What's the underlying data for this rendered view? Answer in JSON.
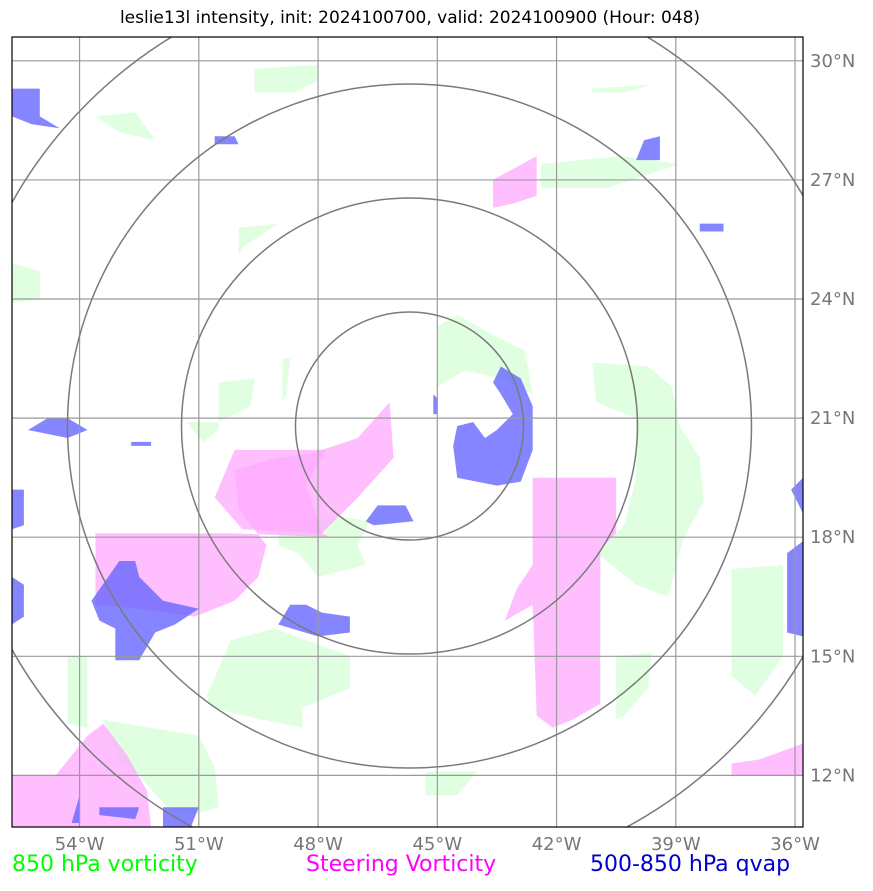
{
  "title": "leslie13l intensity, init: 2024100700, valid: 2024100900 (Hour: 048)",
  "map": {
    "extent": {
      "lon_min": -55.7,
      "lon_max": -35.8,
      "lat_min": 10.7,
      "lat_max": 30.6
    },
    "lon_ticks": [
      -54,
      -51,
      -48,
      -45,
      -42,
      -39,
      -36
    ],
    "lat_ticks": [
      12,
      15,
      18,
      21,
      24,
      27,
      30
    ],
    "lon_tick_labels": [
      "54°W",
      "51°W",
      "48°W",
      "45°W",
      "42°W",
      "39°W",
      "36°W"
    ],
    "lat_tick_labels": [
      "12°N",
      "15°N",
      "18°N",
      "21°N",
      "24°N",
      "27°N",
      "30°N"
    ],
    "gridlines": true,
    "range_rings": {
      "center": {
        "lon": -45.7,
        "lat": 20.8
      },
      "count": 4
    }
  },
  "legend": [
    {
      "label": "850 hPa vorticity",
      "color": "#00ff00"
    },
    {
      "label": "Steering Vorticity",
      "color": "#ff00ff"
    },
    {
      "label": "500-850 hPa qvap",
      "color": "#0000cc"
    }
  ],
  "fields": [
    {
      "name": "850 hPa vorticity",
      "fill": "#ccffcc",
      "opacity": 0.6,
      "polygons": [
        [
          [
            -49.6,
            29.8
          ],
          [
            -48.0,
            29.9
          ],
          [
            -48.0,
            29.5
          ],
          [
            -48.6,
            29.2
          ],
          [
            -49.6,
            29.2
          ]
        ],
        [
          [
            -41.1,
            29.3
          ],
          [
            -39.6,
            29.4
          ],
          [
            -40.3,
            29.2
          ],
          [
            -41.1,
            29.2
          ]
        ],
        [
          [
            -53.6,
            28.6
          ],
          [
            -52.6,
            28.7
          ],
          [
            -52.1,
            28.0
          ],
          [
            -53.0,
            28.2
          ]
        ],
        [
          [
            -42.4,
            27.4
          ],
          [
            -40.4,
            27.6
          ],
          [
            -38.9,
            27.4
          ],
          [
            -39.8,
            27.1
          ],
          [
            -40.7,
            26.8
          ],
          [
            -42.4,
            26.8
          ]
        ],
        [
          [
            -50.0,
            25.8
          ],
          [
            -49.0,
            25.9
          ],
          [
            -49.9,
            25.3
          ],
          [
            -50.0,
            25.1
          ]
        ],
        [
          [
            -55.7,
            24.9
          ],
          [
            -55.0,
            24.7
          ],
          [
            -55.0,
            24.0
          ],
          [
            -55.7,
            23.9
          ]
        ],
        [
          [
            -45.0,
            23.3
          ],
          [
            -44.5,
            23.6
          ],
          [
            -43.6,
            23.1
          ],
          [
            -42.8,
            22.7
          ],
          [
            -42.6,
            21.6
          ],
          [
            -43.4,
            22.0
          ],
          [
            -44.3,
            22.2
          ],
          [
            -45.0,
            21.8
          ]
        ],
        [
          [
            -41.1,
            22.4
          ],
          [
            -39.7,
            22.3
          ],
          [
            -39.1,
            21.8
          ],
          [
            -38.9,
            20.8
          ],
          [
            -38.4,
            20.0
          ],
          [
            -38.3,
            18.9
          ],
          [
            -38.8,
            18.0
          ],
          [
            -39.2,
            16.5
          ],
          [
            -40.0,
            16.8
          ],
          [
            -41.0,
            17.6
          ],
          [
            -40.3,
            18.3
          ],
          [
            -40.0,
            19.5
          ],
          [
            -40.0,
            21.0
          ],
          [
            -41.0,
            21.4
          ]
        ],
        [
          [
            -50.5,
            21.9
          ],
          [
            -49.6,
            22.0
          ],
          [
            -49.7,
            21.3
          ],
          [
            -50.5,
            20.9
          ],
          [
            -51.3,
            20.9
          ],
          [
            -50.9,
            20.4
          ],
          [
            -50.5,
            20.7
          ],
          [
            -50.5,
            21.2
          ]
        ],
        [
          [
            -48.9,
            22.5
          ],
          [
            -48.7,
            22.5
          ],
          [
            -48.8,
            21.6
          ],
          [
            -48.9,
            21.4
          ]
        ],
        [
          [
            -49.0,
            18.4
          ],
          [
            -47.3,
            18.5
          ],
          [
            -46.7,
            18.4
          ],
          [
            -47.0,
            17.8
          ],
          [
            -46.8,
            17.3
          ],
          [
            -48.0,
            17.0
          ],
          [
            -48.5,
            17.6
          ],
          [
            -49.0,
            17.8
          ]
        ],
        [
          [
            -50.2,
            15.4
          ],
          [
            -49.1,
            15.7
          ],
          [
            -48.0,
            15.3
          ],
          [
            -47.2,
            15.0
          ],
          [
            -47.2,
            14.2
          ],
          [
            -48.4,
            13.7
          ],
          [
            -48.4,
            13.2
          ],
          [
            -49.4,
            13.4
          ],
          [
            -50.7,
            13.7
          ],
          [
            -50.8,
            14.0
          ]
        ],
        [
          [
            -37.6,
            17.2
          ],
          [
            -36.3,
            17.3
          ],
          [
            -36.3,
            15.0
          ],
          [
            -37.0,
            14.0
          ],
          [
            -37.6,
            14.5
          ]
        ],
        [
          [
            -40.5,
            15.0
          ],
          [
            -39.6,
            15.1
          ],
          [
            -39.7,
            14.2
          ],
          [
            -40.3,
            13.5
          ],
          [
            -40.5,
            13.4
          ]
        ],
        [
          [
            -54.3,
            15.0
          ],
          [
            -53.8,
            15.0
          ],
          [
            -53.8,
            13.2
          ],
          [
            -54.3,
            13.3
          ]
        ],
        [
          [
            -53.4,
            13.4
          ],
          [
            -51.0,
            13.0
          ],
          [
            -50.6,
            12.2
          ],
          [
            -50.5,
            11.2
          ],
          [
            -51.2,
            11.0
          ],
          [
            -51.8,
            11.2
          ],
          [
            -52.5,
            12.0
          ],
          [
            -53.0,
            12.3
          ]
        ],
        [
          [
            -45.3,
            12.1
          ],
          [
            -44.0,
            12.1
          ],
          [
            -44.5,
            11.5
          ],
          [
            -45.3,
            11.5
          ]
        ],
        [
          [
            -45.5,
            18.0
          ],
          [
            -45.0,
            18.0
          ],
          [
            -45.5,
            17.9
          ]
        ]
      ]
    },
    {
      "name": "Steering Vorticity",
      "fill": "#ffaaff",
      "opacity": 0.75,
      "polygons": [
        [
          [
            -47.0,
            20.5
          ],
          [
            -46.2,
            21.4
          ],
          [
            -46.1,
            20.0
          ],
          [
            -47.0,
            19.0
          ],
          [
            -47.9,
            18.1
          ],
          [
            -47.7,
            18.0
          ],
          [
            -50.2,
            18.1
          ],
          [
            -52.3,
            18.1
          ],
          [
            -53.6,
            18.1
          ],
          [
            -53.6,
            16.3
          ],
          [
            -52.5,
            16.2
          ],
          [
            -51.1,
            16.0
          ],
          [
            -50.1,
            16.4
          ],
          [
            -49.5,
            17.0
          ],
          [
            -49.3,
            17.8
          ],
          [
            -50.0,
            18.7
          ],
          [
            -50.1,
            19.7
          ],
          [
            -49.0,
            20.0
          ],
          [
            -48.2,
            20.1
          ]
        ],
        [
          [
            -50.1,
            20.2
          ],
          [
            -47.8,
            20.2
          ],
          [
            -48.3,
            19.3
          ],
          [
            -47.9,
            18.1
          ],
          [
            -49.9,
            18.2
          ],
          [
            -50.6,
            19.0
          ]
        ],
        [
          [
            -42.6,
            19.5
          ],
          [
            -40.5,
            19.5
          ],
          [
            -40.5,
            18.1
          ],
          [
            -40.9,
            17.7
          ],
          [
            -40.9,
            15.7
          ],
          [
            -40.9,
            13.8
          ],
          [
            -41.6,
            13.4
          ],
          [
            -42.1,
            13.2
          ],
          [
            -42.5,
            13.5
          ],
          [
            -42.6,
            16.3
          ],
          [
            -43.3,
            15.9
          ],
          [
            -43.0,
            16.7
          ],
          [
            -42.6,
            17.3
          ]
        ],
        [
          [
            -43.6,
            27.0
          ],
          [
            -42.5,
            27.6
          ],
          [
            -42.5,
            26.6
          ],
          [
            -43.1,
            26.4
          ],
          [
            -43.6,
            26.3
          ]
        ],
        [
          [
            -37.6,
            12.3
          ],
          [
            -36.9,
            12.4
          ],
          [
            -35.8,
            12.8
          ],
          [
            -35.8,
            12.0
          ],
          [
            -37.6,
            12.0
          ]
        ],
        [
          [
            -55.7,
            12.0
          ],
          [
            -54.6,
            12.0
          ],
          [
            -53.8,
            13.0
          ],
          [
            -53.4,
            13.3
          ],
          [
            -52.8,
            12.5
          ],
          [
            -52.3,
            11.6
          ],
          [
            -52.2,
            10.7
          ],
          [
            -55.7,
            10.7
          ]
        ]
      ]
    },
    {
      "name": "500-850 hPa qvap",
      "fill": "#6666ff",
      "opacity": 0.8,
      "polygons": [
        [
          [
            -43.4,
            22.3
          ],
          [
            -42.9,
            22.0
          ],
          [
            -42.6,
            21.3
          ],
          [
            -42.6,
            20.2
          ],
          [
            -42.9,
            19.4
          ],
          [
            -43.5,
            19.3
          ],
          [
            -44.5,
            19.5
          ],
          [
            -44.6,
            20.3
          ],
          [
            -44.5,
            20.8
          ],
          [
            -44.1,
            20.9
          ],
          [
            -43.8,
            20.5
          ],
          [
            -43.5,
            20.7
          ],
          [
            -43.1,
            21.1
          ],
          [
            -43.4,
            21.6
          ],
          [
            -43.6,
            21.9
          ]
        ],
        [
          [
            -45.1,
            21.6
          ],
          [
            -45.0,
            21.5
          ],
          [
            -45.0,
            21.1
          ],
          [
            -45.1,
            21.1
          ]
        ],
        [
          [
            -46.5,
            18.8
          ],
          [
            -45.8,
            18.8
          ],
          [
            -45.6,
            18.4
          ],
          [
            -46.6,
            18.3
          ],
          [
            -46.8,
            18.4
          ]
        ],
        [
          [
            -53.0,
            17.4
          ],
          [
            -52.6,
            17.4
          ],
          [
            -52.5,
            17.0
          ],
          [
            -51.9,
            16.4
          ],
          [
            -51.0,
            16.2
          ],
          [
            -51.6,
            15.8
          ],
          [
            -52.1,
            15.6
          ],
          [
            -52.5,
            14.9
          ],
          [
            -53.1,
            14.9
          ],
          [
            -53.1,
            15.7
          ],
          [
            -53.5,
            15.9
          ],
          [
            -53.7,
            16.4
          ]
        ],
        [
          [
            -48.7,
            16.3
          ],
          [
            -48.3,
            16.3
          ],
          [
            -47.9,
            16.1
          ],
          [
            -47.2,
            16.0
          ],
          [
            -47.2,
            15.6
          ],
          [
            -48.0,
            15.5
          ],
          [
            -49.0,
            15.8
          ]
        ],
        [
          [
            -54.8,
            21.0
          ],
          [
            -54.3,
            21.0
          ],
          [
            -53.8,
            20.7
          ],
          [
            -54.3,
            20.5
          ],
          [
            -55.3,
            20.7
          ]
        ],
        [
          [
            -55.5,
            29.3
          ],
          [
            -55.0,
            29.3
          ],
          [
            -55.0,
            28.6
          ],
          [
            -54.5,
            28.3
          ],
          [
            -55.2,
            28.4
          ],
          [
            -55.7,
            28.6
          ],
          [
            -55.7,
            29.3
          ]
        ],
        [
          [
            -50.6,
            28.1
          ],
          [
            -50.1,
            28.1
          ],
          [
            -50.0,
            27.9
          ],
          [
            -50.6,
            27.9
          ]
        ],
        [
          [
            -39.8,
            28.0
          ],
          [
            -39.4,
            28.1
          ],
          [
            -39.4,
            27.5
          ],
          [
            -40.0,
            27.5
          ]
        ],
        [
          [
            -38.4,
            25.9
          ],
          [
            -37.8,
            25.9
          ],
          [
            -37.8,
            25.7
          ],
          [
            -38.4,
            25.7
          ]
        ],
        [
          [
            -52.7,
            20.4
          ],
          [
            -52.2,
            20.4
          ],
          [
            -52.2,
            20.3
          ],
          [
            -52.7,
            20.3
          ]
        ],
        [
          [
            -55.7,
            19.2
          ],
          [
            -55.4,
            19.2
          ],
          [
            -55.4,
            18.3
          ],
          [
            -55.7,
            18.2
          ]
        ],
        [
          [
            -55.7,
            17.0
          ],
          [
            -55.4,
            16.8
          ],
          [
            -55.4,
            16.0
          ],
          [
            -55.7,
            15.8
          ]
        ],
        [
          [
            -36.2,
            17.6
          ],
          [
            -35.8,
            17.9
          ],
          [
            -35.8,
            15.5
          ],
          [
            -36.2,
            15.6
          ]
        ],
        [
          [
            -35.8,
            19.5
          ],
          [
            -36.1,
            19.2
          ],
          [
            -35.8,
            18.6
          ]
        ],
        [
          [
            -54.0,
            11.5
          ],
          [
            -54.0,
            10.8
          ],
          [
            -54.2,
            10.8
          ]
        ],
        [
          [
            -53.5,
            11.2
          ],
          [
            -52.5,
            11.2
          ],
          [
            -52.6,
            10.9
          ],
          [
            -53.5,
            11.0
          ]
        ],
        [
          [
            -51.9,
            11.2
          ],
          [
            -51.0,
            11.2
          ],
          [
            -51.2,
            10.7
          ],
          [
            -51.9,
            10.7
          ]
        ]
      ]
    }
  ]
}
